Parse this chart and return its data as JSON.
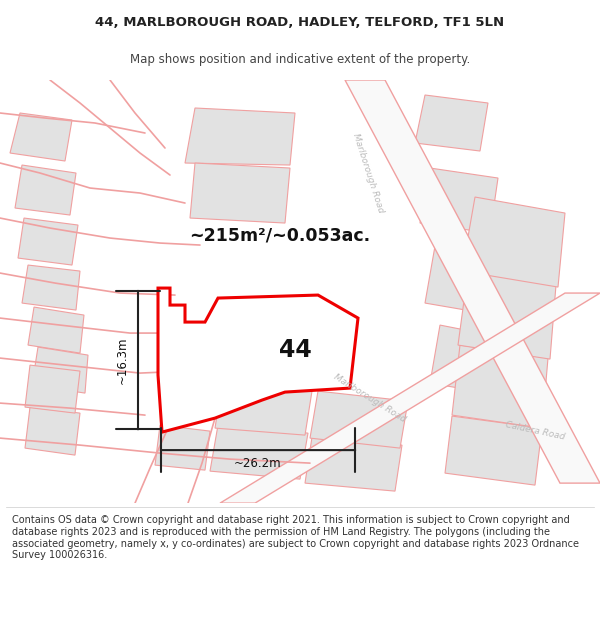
{
  "title_line1": "44, MARLBOROUGH ROAD, HADLEY, TELFORD, TF1 5LN",
  "title_line2": "Map shows position and indicative extent of the property.",
  "footer_text": "Contains OS data © Crown copyright and database right 2021. This information is subject to Crown copyright and database rights 2023 and is reproduced with the permission of HM Land Registry. The polygons (including the associated geometry, namely x, y co-ordinates) are subject to Crown copyright and database rights 2023 Ordnance Survey 100026316.",
  "area_text": "~215m²/~0.053ac.",
  "number_label": "44",
  "dim_horizontal": "~26.2m",
  "dim_vertical": "~16.3m",
  "map_bg": "#efefef",
  "road_fill": "#f9f9f9",
  "road_stroke": "#f0a0a0",
  "bld_fill": "#e2e2e2",
  "bld_stroke": "#f0a0a0",
  "plot_stroke": "#ee0000",
  "plot_fill": "#ffffff",
  "dim_color": "#222222",
  "label_color": "#bbbbbb",
  "title_fs": 9.5,
  "subtitle_fs": 8.5,
  "footer_fs": 7.0,
  "area_fs": 12.5,
  "num_fs": 17,
  "dim_fs": 8.5,
  "road_lbl_fs": 6.5
}
